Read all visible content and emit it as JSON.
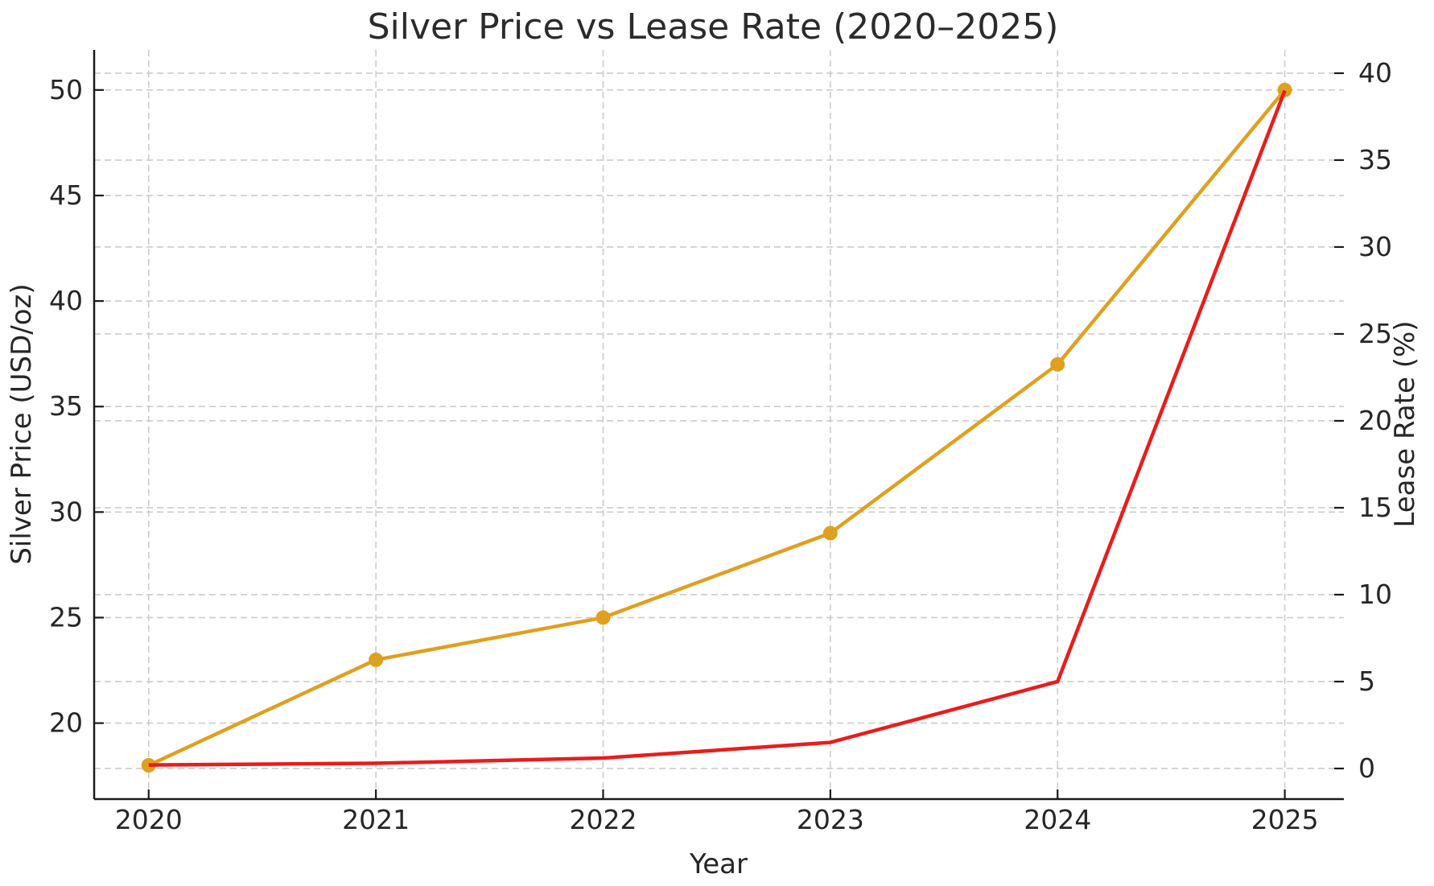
{
  "figure": {
    "title": "Silver Price vs Lease Rate (2020–2025)",
    "xlabel": "Year",
    "ylabel_left": "Silver Price (USD/oz)",
    "ylabel_right": "Lease Rate (%)",
    "background_color": "#ffffff",
    "text_color": "#262626",
    "grid_color": "#cccccc",
    "spine_color": "#1b1b1b"
  },
  "chart_data": {
    "type": "line",
    "title": "Silver Price vs Lease Rate (2020–2025)",
    "xlabel": "Year",
    "ylabel_left": "Silver Price (USD/oz)",
    "ylabel_right": "Lease Rate (%)",
    "x": [
      2020,
      2021,
      2022,
      2023,
      2024,
      2025
    ],
    "series": [
      {
        "name": "Silver Price",
        "axis": "left",
        "color": "#DFA020",
        "marker": "circle",
        "marker_radius": 9,
        "line_width": 4.5,
        "values": [
          18,
          23,
          25,
          29,
          37,
          50
        ]
      },
      {
        "name": "Lease Rate",
        "axis": "right",
        "color": "#EA1C1C",
        "marker": "none",
        "marker_radius": 0,
        "line_width": 4.5,
        "values": [
          0.2,
          0.3,
          0.6,
          1.5,
          5,
          39
        ]
      }
    ],
    "xticks": [
      2020,
      2021,
      2022,
      2023,
      2024,
      2025
    ],
    "yticks_left": [
      20,
      25,
      30,
      35,
      40,
      45,
      50
    ],
    "yticks_right": [
      0,
      5,
      10,
      15,
      20,
      25,
      30,
      35,
      40
    ],
    "xlim": [
      2019.76,
      2025.26
    ],
    "ylim_left": [
      16.4,
      51.9
    ],
    "ylim_right": [
      -1.76,
      41.34
    ],
    "grid": "dashed gridlines for both y-axes and x ticks",
    "legend": "none"
  }
}
